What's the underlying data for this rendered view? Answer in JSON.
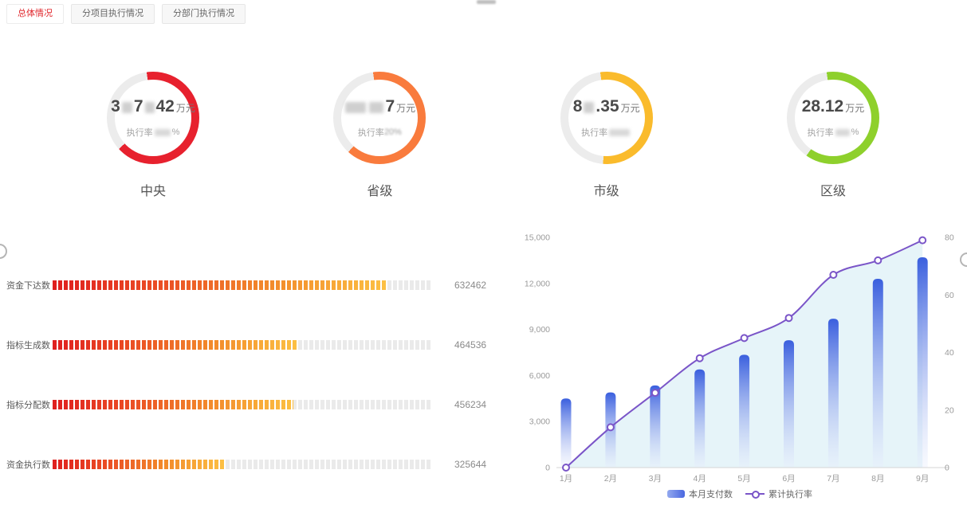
{
  "tabs": [
    {
      "label": "总体情况",
      "active": true
    },
    {
      "label": "分项目执行情况",
      "active": false
    },
    {
      "label": "分部门执行情况",
      "active": false
    }
  ],
  "chart_data": [
    {
      "type": "gauge",
      "description": "four donut rings, values partially redacted in source image",
      "unit": "万元",
      "rate_prefix": "执行率",
      "items": [
        {
          "label": "中央",
          "color": "#e7212e",
          "ring_fill_fraction": 0.655,
          "visible_value": "3█7█42 万元",
          "visible_rate": "执行率█%",
          "value_segments": [
            [
              "t",
              "3"
            ],
            [
              "r",
              13
            ],
            [
              "t",
              "7"
            ],
            [
              "r",
              12
            ],
            [
              "t",
              "42"
            ]
          ],
          "rate_segments": [
            [
              "t",
              "执行率"
            ],
            [
              "r",
              20
            ],
            [
              "t",
              "%"
            ]
          ]
        },
        {
          "label": "省级",
          "color": "#f97b3d",
          "ring_fill_fraction": 0.64,
          "visible_value": "██7 万元",
          "visible_rate": "执行率20%",
          "value_segments": [
            [
              "r",
              26
            ],
            [
              "r",
              18
            ],
            [
              "t",
              "7"
            ]
          ],
          "rate_segments": [
            [
              "t",
              "执行率"
            ],
            [
              "bt",
              "20%"
            ]
          ]
        },
        {
          "label": "市级",
          "color": "#fabb2c",
          "ring_fill_fraction": 0.535,
          "visible_value": "8█.35 万元",
          "visible_rate": "执行率█",
          "value_segments": [
            [
              "t",
              "8"
            ],
            [
              "r",
              13
            ],
            [
              "t",
              ".35"
            ]
          ],
          "rate_segments": [
            [
              "t",
              "执行率"
            ],
            [
              "r",
              26
            ]
          ]
        },
        {
          "label": "区级",
          "color": "#8ed02c",
          "ring_fill_fraction": 0.62,
          "visible_value": "28.12 万元",
          "visible_rate": "执行率█%",
          "value_segments": [
            [
              "t",
              "28.12"
            ]
          ],
          "rate_segments": [
            [
              "t",
              "执行率"
            ],
            [
              "r",
              18
            ],
            [
              "t",
              "%"
            ]
          ]
        }
      ],
      "track_color": "#ececec"
    },
    {
      "type": "bar",
      "orientation": "horizontal",
      "style": "segmented",
      "categories": [
        "资金下达数",
        "指标生成数",
        "指标分配数",
        "资金执行数"
      ],
      "values": [
        632462,
        464536,
        456234,
        325644
      ],
      "xlim": [
        0,
        720000
      ],
      "bar_gradient": [
        "#df1f1f",
        "#ea4a24",
        "#f28a2b",
        "#fcc043"
      ],
      "track_color": "#eaeaea",
      "grid": false
    },
    {
      "type": "bar+line",
      "categories": [
        "1月",
        "2月",
        "3月",
        "4月",
        "5月",
        "6月",
        "7月",
        "8月",
        "9月"
      ],
      "series": [
        {
          "name": "本月支付数",
          "type": "bar",
          "yaxis": "left",
          "color_top": "#3a5fde",
          "color_bottom": "#e8edfc",
          "values": [
            4500,
            4900,
            5350,
            6400,
            7350,
            8300,
            9700,
            12300,
            13700
          ]
        },
        {
          "name": "累计执行率",
          "type": "line",
          "yaxis": "right",
          "color": "#7a55c8",
          "marker": "circle",
          "area_color": "#cdeaf3",
          "values": [
            0,
            14,
            26,
            38,
            45,
            52,
            67,
            72,
            79
          ]
        }
      ],
      "yaxis_left": {
        "min": 0,
        "max": 15000,
        "step": 3000
      },
      "yaxis_right": {
        "min": 0,
        "max": 80,
        "step": 20
      },
      "axis_color": "#d6d6d6",
      "tick_color": "#9a9a9a",
      "legend_position": "bottom",
      "grid": false
    }
  ]
}
